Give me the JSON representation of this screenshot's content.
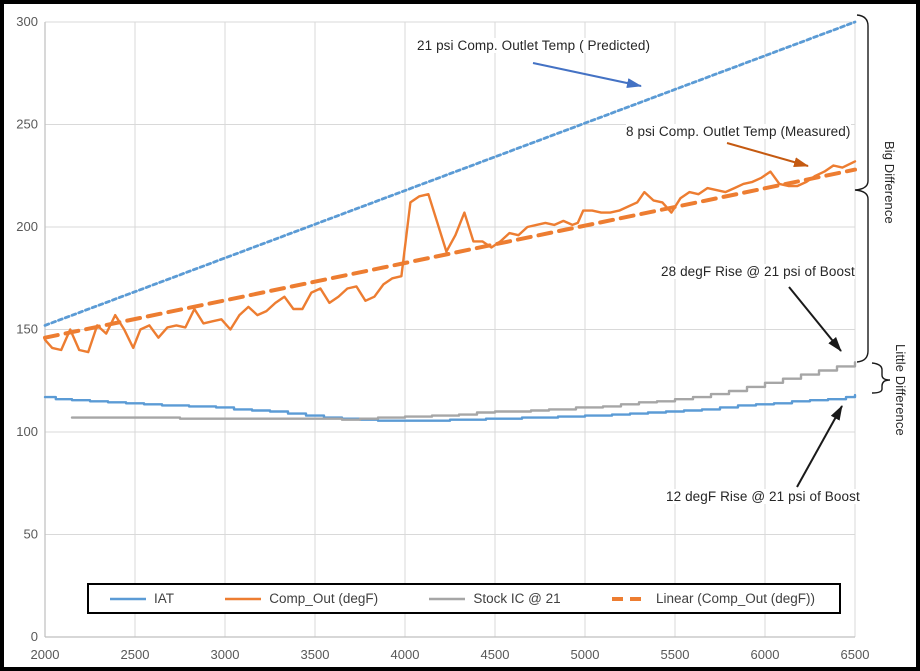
{
  "chart_data": {
    "type": "line",
    "title": "",
    "xlabel": "",
    "ylabel": "",
    "x_range": [
      2000,
      6500
    ],
    "y_range": [
      0,
      300
    ],
    "x_ticks": [
      2000,
      2500,
      3000,
      3500,
      4000,
      4500,
      5000,
      5500,
      6000,
      6500
    ],
    "y_ticks": [
      0,
      50,
      100,
      150,
      200,
      250,
      300
    ],
    "grid": true,
    "legend_position": "bottom-inside",
    "series": [
      {
        "name": "IAT",
        "color": "#5B9BD5",
        "style": "solid",
        "step": true,
        "in_legend": true,
        "points": [
          [
            2000,
            117
          ],
          [
            2060,
            116
          ],
          [
            2150,
            115.5
          ],
          [
            2250,
            115
          ],
          [
            2350,
            114.5
          ],
          [
            2450,
            114
          ],
          [
            2550,
            113.5
          ],
          [
            2650,
            113
          ],
          [
            2800,
            112.5
          ],
          [
            2950,
            112
          ],
          [
            3050,
            111
          ],
          [
            3150,
            110.5
          ],
          [
            3250,
            110
          ],
          [
            3350,
            109
          ],
          [
            3450,
            108
          ],
          [
            3550,
            107
          ],
          [
            3650,
            106.5
          ],
          [
            3750,
            106
          ],
          [
            3850,
            105.5
          ],
          [
            4150,
            105.5
          ],
          [
            4250,
            106
          ],
          [
            4450,
            106.5
          ],
          [
            4650,
            107
          ],
          [
            4850,
            107.5
          ],
          [
            5000,
            108
          ],
          [
            5150,
            108.5
          ],
          [
            5250,
            109
          ],
          [
            5350,
            109.5
          ],
          [
            5450,
            110
          ],
          [
            5550,
            110.5
          ],
          [
            5650,
            111
          ],
          [
            5750,
            112
          ],
          [
            5850,
            113
          ],
          [
            5950,
            113.5
          ],
          [
            6050,
            114
          ],
          [
            6150,
            115
          ],
          [
            6250,
            115.5
          ],
          [
            6350,
            116
          ],
          [
            6450,
            117
          ],
          [
            6500,
            118
          ]
        ]
      },
      {
        "name": "Comp_Out (degF)",
        "color": "#ED7D31",
        "style": "solid",
        "step": false,
        "in_legend": true,
        "points": [
          [
            2000,
            145
          ],
          [
            2040,
            141
          ],
          [
            2090,
            140
          ],
          [
            2140,
            150
          ],
          [
            2190,
            140
          ],
          [
            2240,
            139
          ],
          [
            2290,
            152
          ],
          [
            2340,
            148
          ],
          [
            2390,
            157
          ],
          [
            2440,
            150
          ],
          [
            2490,
            141
          ],
          [
            2530,
            150
          ],
          [
            2580,
            152
          ],
          [
            2630,
            146
          ],
          [
            2680,
            151
          ],
          [
            2730,
            152
          ],
          [
            2780,
            151
          ],
          [
            2830,
            160
          ],
          [
            2880,
            153
          ],
          [
            2930,
            154
          ],
          [
            2980,
            155
          ],
          [
            3030,
            150
          ],
          [
            3080,
            157
          ],
          [
            3130,
            161
          ],
          [
            3180,
            157
          ],
          [
            3230,
            159
          ],
          [
            3280,
            163
          ],
          [
            3330,
            166
          ],
          [
            3380,
            160
          ],
          [
            3430,
            160
          ],
          [
            3480,
            168
          ],
          [
            3530,
            170
          ],
          [
            3580,
            163
          ],
          [
            3630,
            166
          ],
          [
            3680,
            170
          ],
          [
            3730,
            171
          ],
          [
            3780,
            164
          ],
          [
            3830,
            166
          ],
          [
            3880,
            172
          ],
          [
            3930,
            175
          ],
          [
            3980,
            176
          ],
          [
            4030,
            212
          ],
          [
            4080,
            215
          ],
          [
            4130,
            216
          ],
          [
            4180,
            202
          ],
          [
            4230,
            188
          ],
          [
            4280,
            196
          ],
          [
            4330,
            207
          ],
          [
            4380,
            193
          ],
          [
            4430,
            193
          ],
          [
            4480,
            190
          ],
          [
            4530,
            193
          ],
          [
            4580,
            197
          ],
          [
            4630,
            196
          ],
          [
            4680,
            200
          ],
          [
            4730,
            201
          ],
          [
            4780,
            202
          ],
          [
            4830,
            201
          ],
          [
            4880,
            203
          ],
          [
            4930,
            201
          ],
          [
            4960,
            202
          ],
          [
            4990,
            208
          ],
          [
            5040,
            208
          ],
          [
            5090,
            207
          ],
          [
            5140,
            207
          ],
          [
            5190,
            208
          ],
          [
            5240,
            210
          ],
          [
            5290,
            212
          ],
          [
            5330,
            217
          ],
          [
            5380,
            213
          ],
          [
            5430,
            212
          ],
          [
            5480,
            207
          ],
          [
            5530,
            214
          ],
          [
            5580,
            217
          ],
          [
            5630,
            216
          ],
          [
            5680,
            219
          ],
          [
            5730,
            218
          ],
          [
            5780,
            217
          ],
          [
            5830,
            219
          ],
          [
            5880,
            221
          ],
          [
            5930,
            222
          ],
          [
            5980,
            224
          ],
          [
            6030,
            227
          ],
          [
            6080,
            221
          ],
          [
            6130,
            220
          ],
          [
            6180,
            220
          ],
          [
            6230,
            222
          ],
          [
            6280,
            225
          ],
          [
            6330,
            227
          ],
          [
            6380,
            230
          ],
          [
            6430,
            229
          ],
          [
            6500,
            232
          ]
        ]
      },
      {
        "name": "Stock IC @ 21",
        "color": "#A6A6A6",
        "style": "solid",
        "step": true,
        "in_legend": true,
        "points": [
          [
            2150,
            107
          ],
          [
            2650,
            107
          ],
          [
            2750,
            106.5
          ],
          [
            3550,
            106.5
          ],
          [
            3650,
            106
          ],
          [
            3750,
            106.5
          ],
          [
            3850,
            107
          ],
          [
            4000,
            107.5
          ],
          [
            4150,
            108
          ],
          [
            4300,
            108.5
          ],
          [
            4400,
            109.5
          ],
          [
            4500,
            110
          ],
          [
            4700,
            110.5
          ],
          [
            4800,
            111
          ],
          [
            4950,
            112
          ],
          [
            5100,
            112.5
          ],
          [
            5200,
            113.5
          ],
          [
            5300,
            114.5
          ],
          [
            5400,
            115
          ],
          [
            5500,
            116
          ],
          [
            5600,
            117
          ],
          [
            5700,
            118.5
          ],
          [
            5800,
            120
          ],
          [
            5900,
            122
          ],
          [
            6000,
            124
          ],
          [
            6100,
            126
          ],
          [
            6200,
            128
          ],
          [
            6300,
            130
          ],
          [
            6400,
            132
          ],
          [
            6500,
            134
          ]
        ]
      },
      {
        "name": "Linear (Comp_Out (degF))",
        "color": "#ED7D31",
        "style": "dashed",
        "step": false,
        "in_legend": true,
        "points": [
          [
            2000,
            146
          ],
          [
            6500,
            228
          ]
        ]
      },
      {
        "name": "21 psi Predicted",
        "color": "#5B9BD5",
        "style": "dotted",
        "step": false,
        "in_legend": false,
        "points": [
          [
            2000,
            152
          ],
          [
            6500,
            300
          ]
        ]
      }
    ]
  },
  "annotations": {
    "predicted": "21 psi Comp. Outlet Temp ( Predicted)",
    "measured": "8 psi Comp. Outlet Temp (Measured)",
    "rise_big": "28 degF Rise @ 21 psi of Boost",
    "rise_small": "12 degF Rise @ 21 psi of Boost",
    "big_difference": "Big Difference",
    "little_difference": "Little Difference"
  },
  "colors": {
    "iat": "#5B9BD5",
    "comp_out": "#ED7D31",
    "stock_ic": "#A6A6A6",
    "trendline": "#ED7D31",
    "predicted_line": "#5B9BD5",
    "predicted_arrow": "#4472C4",
    "measured_arrow": "#C55A11",
    "black_arrow": "#1a1a1a",
    "grid": "#D9D9D9",
    "axis": "#BFBFBF",
    "tick_text": "#595959",
    "annotation_text": "#262626"
  }
}
